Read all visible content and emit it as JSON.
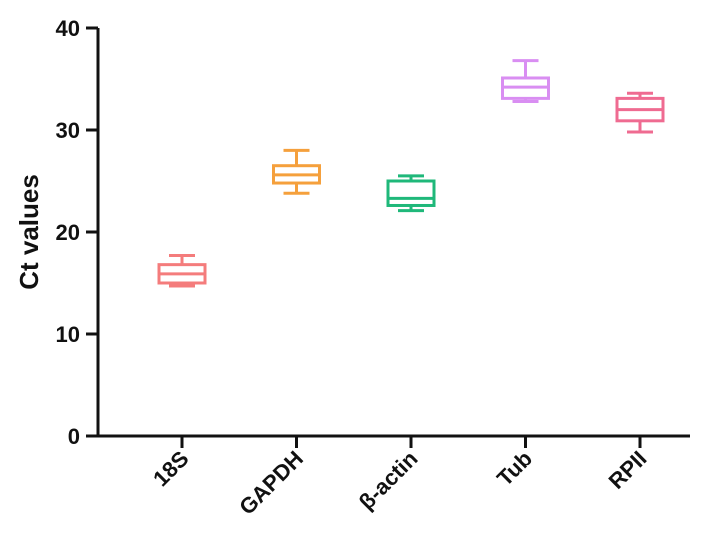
{
  "chart_data": {
    "type": "box",
    "ylabel": "Ct values",
    "xlabel": "",
    "title": "",
    "ylim": [
      0,
      40
    ],
    "yticks": [
      0,
      10,
      20,
      30,
      40
    ],
    "grid": false,
    "categories": [
      "18S",
      "GAPDH",
      "β-actin",
      "Tub",
      "RPII"
    ],
    "boxes": [
      {
        "category": "18S",
        "min": 14.7,
        "q1": 15.0,
        "median": 15.9,
        "q3": 16.8,
        "max": 17.7,
        "color": "#f47c7c"
      },
      {
        "category": "GAPDH",
        "min": 23.8,
        "q1": 24.8,
        "median": 25.6,
        "q3": 26.5,
        "max": 28.0,
        "color": "#f5a03c"
      },
      {
        "category": "β-actin",
        "min": 22.1,
        "q1": 22.6,
        "median": 23.3,
        "q3": 25.0,
        "max": 25.5,
        "color": "#1fb87a"
      },
      {
        "category": "Tub",
        "min": 32.8,
        "q1": 33.1,
        "median": 34.2,
        "q3": 35.1,
        "max": 36.8,
        "color": "#d98ef2"
      },
      {
        "category": "RPII",
        "min": 29.8,
        "q1": 30.9,
        "median": 32.0,
        "q3": 33.1,
        "max": 33.6,
        "color": "#ef6b91"
      }
    ]
  }
}
